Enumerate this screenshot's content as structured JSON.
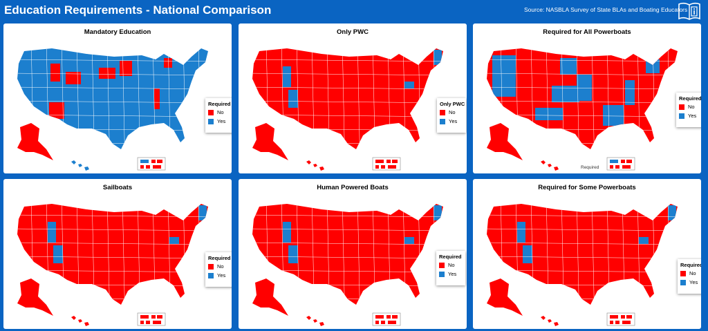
{
  "header": {
    "title": "Education Requirements - National Comparison",
    "source": "Source: NASBLA Survey of State BLAs and Boating Educators",
    "icon": "book-info-icon"
  },
  "colors": {
    "no": "#ff0000",
    "yes": "#1c7fce",
    "background": "#0a64c2"
  },
  "legend_items": {
    "no": "No",
    "yes": "Yes"
  },
  "panels": [
    {
      "title": "Mandatory Education",
      "legend_title": "Required",
      "footer": "",
      "mostly": "yes"
    },
    {
      "title": "Only PWC",
      "legend_title": "Only PWC",
      "footer": "",
      "mostly": "no"
    },
    {
      "title": "Required for All Powerboats",
      "legend_title": "Required",
      "footer": "Required",
      "mostly": "mixed"
    },
    {
      "title": "Sailboats",
      "legend_title": "Required",
      "footer": "",
      "mostly": "no"
    },
    {
      "title": "Human Powered Boats",
      "legend_title": "Required",
      "footer": "",
      "mostly": "no"
    },
    {
      "title": "Required for Some Powerboats",
      "legend_title": "Required",
      "footer": "",
      "mostly": "no"
    }
  ]
}
